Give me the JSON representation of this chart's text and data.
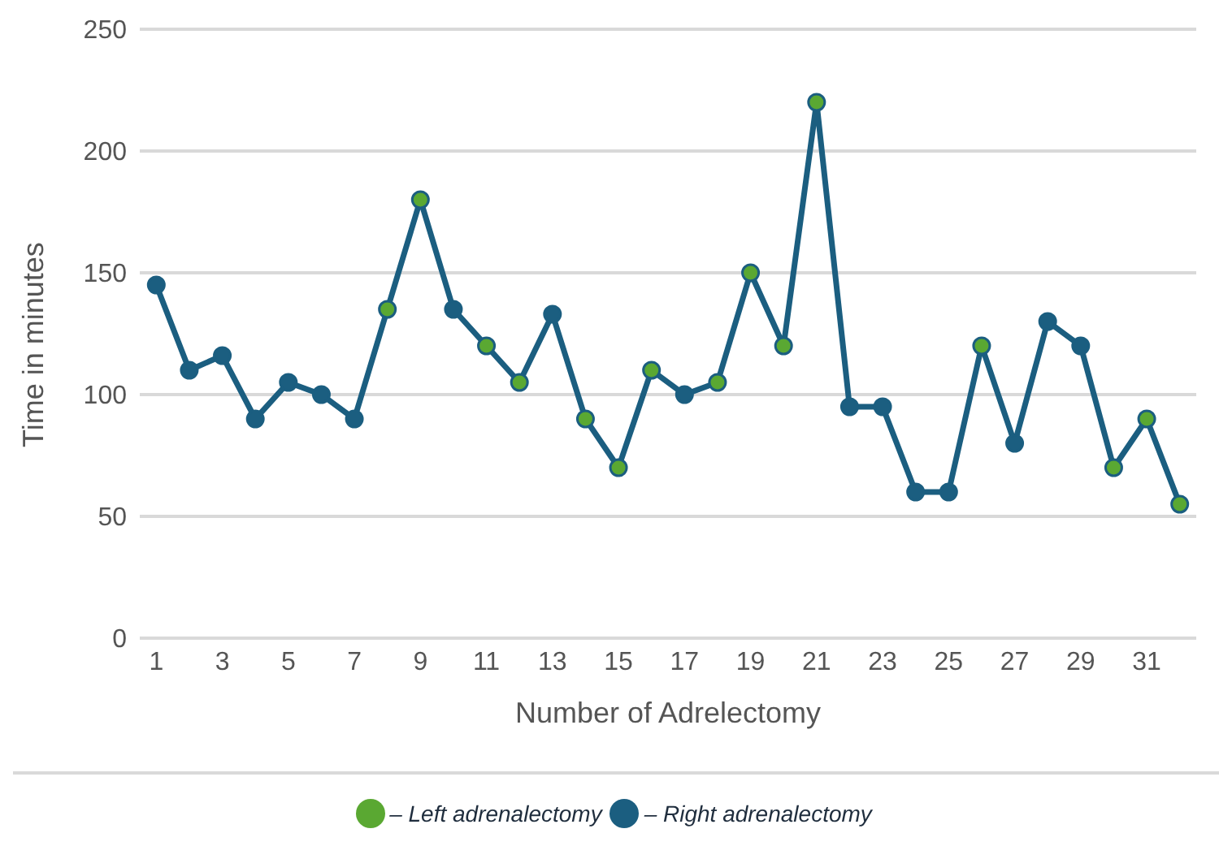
{
  "chart_data": {
    "type": "line",
    "xlabel": "Number of Adrelectomy",
    "ylabel": "Time in minutes",
    "x": [
      1,
      2,
      3,
      4,
      5,
      6,
      7,
      8,
      9,
      10,
      11,
      12,
      13,
      14,
      15,
      16,
      17,
      18,
      19,
      20,
      21,
      22,
      23,
      24,
      25,
      26,
      27,
      28,
      29,
      30,
      31,
      32
    ],
    "xlim": [
      0.5,
      32.5
    ],
    "xticks": [
      1,
      3,
      5,
      7,
      9,
      11,
      13,
      15,
      17,
      19,
      21,
      23,
      25,
      27,
      29,
      31
    ],
    "series": [
      {
        "marker": "none",
        "color": "#1b5e80",
        "values": [
          145,
          110,
          116,
          90,
          105,
          100,
          90,
          135,
          180,
          135,
          120,
          105,
          133,
          90,
          70,
          110,
          100,
          105,
          150,
          120,
          220,
          95,
          95,
          60,
          60,
          120,
          80,
          130,
          120,
          70,
          90,
          55
        ]
      },
      {
        "type": "scatter",
        "marker": "circle",
        "name": "– Left adrenalectomy",
        "color": "#5aa832",
        "values": [
          null,
          null,
          null,
          null,
          null,
          null,
          null,
          135,
          180,
          null,
          120,
          105,
          null,
          90,
          70,
          110,
          null,
          105,
          150,
          120,
          220,
          null,
          null,
          null,
          null,
          120,
          null,
          null,
          null,
          70,
          90,
          55
        ]
      },
      {
        "type": "scatter",
        "marker": "circle",
        "name": "– Right adrenalectomy",
        "color": "#1b5e80",
        "values": [
          145,
          110,
          116,
          90,
          105,
          100,
          90,
          null,
          null,
          135,
          null,
          null,
          133,
          null,
          null,
          null,
          100,
          null,
          null,
          null,
          null,
          95,
          95,
          60,
          60,
          null,
          80,
          130,
          120,
          null,
          null,
          null
        ]
      }
    ],
    "ylim": [
      0,
      250
    ],
    "yticks": [
      0,
      50,
      100,
      150,
      200,
      250
    ],
    "grid": "y",
    "legend": "bottom"
  }
}
